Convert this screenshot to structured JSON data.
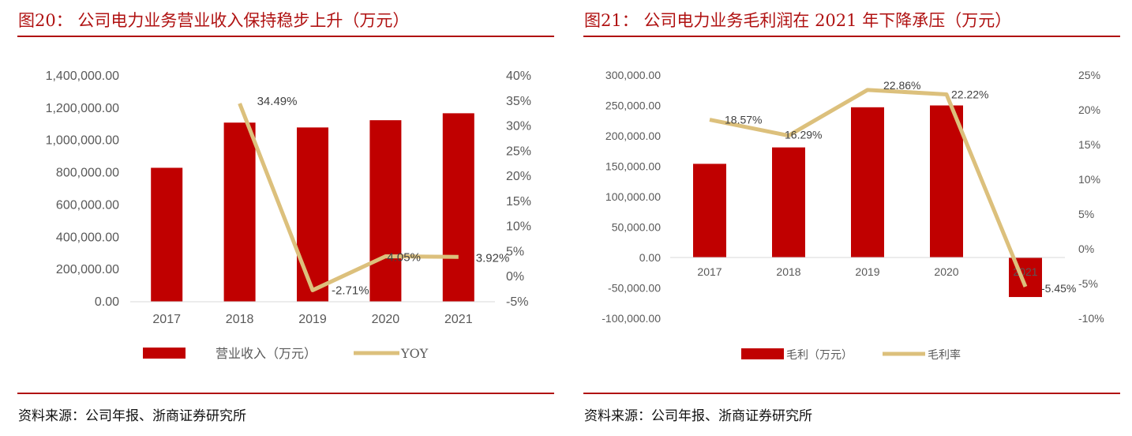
{
  "left": {
    "title": "图20：   公司电力业务营业收入保持稳步上升（万元）",
    "source": "资料来源：公司年报、浙商证券研究所",
    "legend": {
      "bar": "营业收入（万元）",
      "line": "YOY"
    },
    "chart_data": {
      "type": "bar",
      "categories": [
        "2017",
        "2018",
        "2019",
        "2020",
        "2021"
      ],
      "series": [
        {
          "name": "营业收入（万元）",
          "type": "bar",
          "axis": "left",
          "values": [
            830000,
            1110000,
            1080000,
            1125000,
            1168000
          ]
        },
        {
          "name": "YOY",
          "type": "line",
          "axis": "right",
          "values": [
            null,
            34.49,
            -2.71,
            4.05,
            3.92
          ],
          "labels": [
            "",
            "34.49%",
            "-2.71%",
            "4.05%",
            "3.92%"
          ]
        }
      ],
      "left_ticks": [
        "0.00",
        "200,000.00",
        "400,000.00",
        "600,000.00",
        "800,000.00",
        "1,000,000.00",
        "1,200,000.00",
        "1,400,000.00"
      ],
      "right_ticks": [
        "-5%",
        "0%",
        "5%",
        "10%",
        "15%",
        "20%",
        "25%",
        "30%",
        "35%",
        "40%"
      ],
      "ylim_left": [
        0,
        1400000
      ],
      "ylim_right": [
        -5,
        40
      ],
      "colors": {
        "bar": "#c00000",
        "line": "#dcc07c"
      },
      "grid": false,
      "legend_position": "bottom"
    }
  },
  "right": {
    "title": "图21：   公司电力业务毛利润在 2021 年下降承压（万元）",
    "source": "资料来源：公司年报、浙商证券研究所",
    "legend": {
      "bar": "毛利（万元）",
      "line": "毛利率"
    },
    "chart_data": {
      "type": "bar",
      "categories": [
        "2017",
        "2018",
        "2019",
        "2020",
        "2021"
      ],
      "series": [
        {
          "name": "毛利（万元）",
          "type": "bar",
          "axis": "left",
          "values": [
            154000,
            181000,
            247000,
            250000,
            -65000
          ]
        },
        {
          "name": "毛利率",
          "type": "line",
          "axis": "right",
          "values": [
            18.57,
            16.29,
            22.86,
            22.22,
            -5.45
          ],
          "labels": [
            "18.57%",
            "16.29%",
            "22.86%",
            "22.22%",
            "-5.45%"
          ]
        }
      ],
      "left_ticks": [
        "-100,000.00",
        "-50,000.00",
        "0.00",
        "50,000.00",
        "100,000.00",
        "150,000.00",
        "200,000.00",
        "250,000.00",
        "300,000.00"
      ],
      "right_ticks": [
        "-10%",
        "-5%",
        "0%",
        "5%",
        "10%",
        "15%",
        "20%",
        "25%"
      ],
      "ylim_left": [
        -100000,
        300000
      ],
      "ylim_right": [
        -10,
        25
      ],
      "colors": {
        "bar": "#c00000",
        "line": "#dcc07c"
      },
      "grid": false,
      "legend_position": "bottom"
    }
  }
}
